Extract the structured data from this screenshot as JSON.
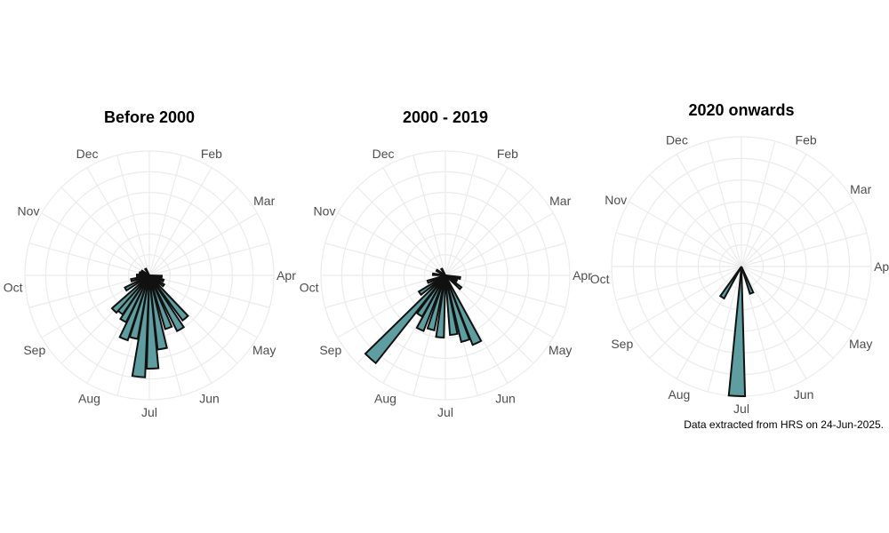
{
  "chart_data": [
    {
      "type": "bar",
      "coord": "polar",
      "title": "Before 2000",
      "categories": [
        "Dec",
        "Feb",
        "Mar",
        "Apr",
        "May",
        "Jun",
        "Jul",
        "Aug",
        "Sep",
        "Oct",
        "Nov"
      ],
      "bar_color": "#5f9ea0",
      "bars": [
        {
          "angle_deg": 95,
          "value": 0.1
        },
        {
          "angle_deg": 110,
          "value": 0.12
        },
        {
          "angle_deg": 125,
          "value": 0.14
        },
        {
          "angle_deg": 140,
          "value": 0.45
        },
        {
          "angle_deg": 150,
          "value": 0.5
        },
        {
          "angle_deg": 160,
          "value": 0.45
        },
        {
          "angle_deg": 170,
          "value": 0.6
        },
        {
          "angle_deg": 178,
          "value": 0.75
        },
        {
          "angle_deg": 186,
          "value": 0.82
        },
        {
          "angle_deg": 194,
          "value": 0.52
        },
        {
          "angle_deg": 202,
          "value": 0.55
        },
        {
          "angle_deg": 210,
          "value": 0.42
        },
        {
          "angle_deg": 218,
          "value": 0.38
        },
        {
          "angle_deg": 225,
          "value": 0.4
        },
        {
          "angle_deg": 240,
          "value": 0.22
        },
        {
          "angle_deg": 255,
          "value": 0.15
        },
        {
          "angle_deg": 270,
          "value": 0.1
        },
        {
          "angle_deg": 285,
          "value": 0.08
        },
        {
          "angle_deg": 300,
          "value": 0.07
        },
        {
          "angle_deg": 330,
          "value": 0.06
        }
      ]
    },
    {
      "type": "bar",
      "coord": "polar",
      "title": "2000 - 2019",
      "categories": [
        "Dec",
        "Feb",
        "Mar",
        "Apr",
        "May",
        "Jun",
        "Jul",
        "Aug",
        "Sep",
        "Oct",
        "Nov"
      ],
      "bar_color": "#5f9ea0",
      "bars": [
        {
          "angle_deg": 100,
          "value": 0.12
        },
        {
          "angle_deg": 115,
          "value": 0.1
        },
        {
          "angle_deg": 130,
          "value": 0.16
        },
        {
          "angle_deg": 155,
          "value": 0.6
        },
        {
          "angle_deg": 163,
          "value": 0.55
        },
        {
          "angle_deg": 172,
          "value": 0.48
        },
        {
          "angle_deg": 185,
          "value": 0.5
        },
        {
          "angle_deg": 195,
          "value": 0.45
        },
        {
          "angle_deg": 205,
          "value": 0.48
        },
        {
          "angle_deg": 213,
          "value": 0.38
        },
        {
          "angle_deg": 222,
          "value": 0.9
        },
        {
          "angle_deg": 235,
          "value": 0.25
        },
        {
          "angle_deg": 250,
          "value": 0.15
        },
        {
          "angle_deg": 275,
          "value": 0.1
        },
        {
          "angle_deg": 300,
          "value": 0.08
        },
        {
          "angle_deg": 330,
          "value": 0.06
        }
      ]
    },
    {
      "type": "bar",
      "coord": "polar",
      "title": "2020 onwards",
      "categories": [
        "Dec",
        "Feb",
        "Mar",
        "Apr",
        "May",
        "Jun",
        "Jul",
        "Aug",
        "Sep",
        "Oct",
        "Nov"
      ],
      "bar_color": "#5f9ea0",
      "bars": [
        {
          "angle_deg": 159,
          "value": 0.22
        },
        {
          "angle_deg": 182,
          "value": 1.0
        },
        {
          "angle_deg": 212,
          "value": 0.28
        }
      ]
    }
  ],
  "caption": "Data extracted from HRS on 24-Jun-2025."
}
